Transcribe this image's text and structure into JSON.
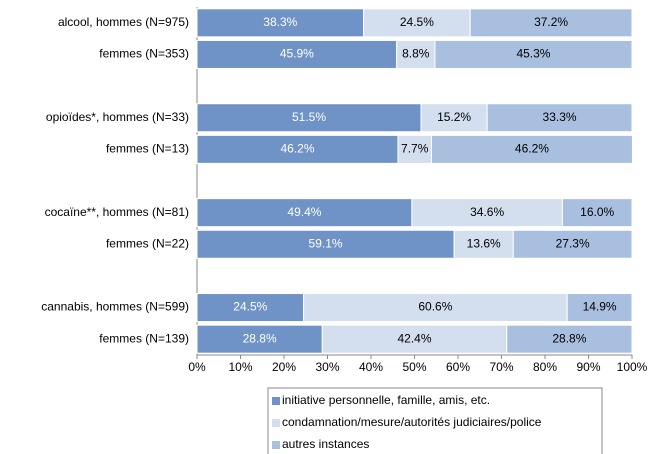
{
  "chart_data": {
    "type": "stacked-barh",
    "categories": [
      "alcool, hommes (N=975)",
      "femmes (N=353)",
      null,
      "opioïdes*, hommes (N=33)",
      "femmes (N=13)",
      null,
      "cocaïne**, hommes (N=81)",
      "femmes (N=22)",
      null,
      "cannabis, hommes (N=599)",
      "femmes (N=139)"
    ],
    "series": [
      {
        "name": "initiative personnelle, famille, amis, etc.",
        "color": "#6f93c6",
        "label_color": "#ffffff",
        "values": [
          38.3,
          45.9,
          null,
          51.5,
          46.2,
          null,
          49.4,
          59.1,
          null,
          24.5,
          28.8
        ],
        "value_labels": [
          "38.3%",
          "45.9%",
          null,
          "51.5%",
          "46.2%",
          null,
          "49.4%",
          "59.1%",
          null,
          "24.5%",
          "28.8%"
        ]
      },
      {
        "name": "condamnation/mesure/autorités judiciaires/police",
        "color": "#d3deef",
        "label_color": "#000000",
        "values": [
          24.5,
          8.8,
          null,
          15.2,
          7.7,
          null,
          34.6,
          13.6,
          null,
          60.6,
          42.4
        ],
        "value_labels": [
          "24.5%",
          "8.8%",
          null,
          "15.2%",
          "7.7%",
          null,
          "34.6%",
          "13.6%",
          null,
          "60.6%",
          "42.4%"
        ]
      },
      {
        "name": "autres instances",
        "color": "#a9bfdf",
        "label_color": "#000000",
        "values": [
          37.2,
          45.3,
          null,
          33.3,
          46.2,
          null,
          16.0,
          27.3,
          null,
          14.9,
          28.8
        ],
        "value_labels": [
          "37.2%",
          "45.3%",
          null,
          "33.3%",
          "46.2%",
          null,
          "16.0%",
          "27.3%",
          null,
          "14.9%",
          "28.8%"
        ]
      }
    ],
    "xlim": [
      0,
      100
    ],
    "xticks": [
      {
        "value": 0,
        "label": "0%"
      },
      {
        "value": 10,
        "label": "10%"
      },
      {
        "value": 20,
        "label": "20%"
      },
      {
        "value": 30,
        "label": "30%"
      },
      {
        "value": 40,
        "label": "40%"
      },
      {
        "value": 50,
        "label": "50%"
      },
      {
        "value": 60,
        "label": "60%"
      },
      {
        "value": 70,
        "label": "70%"
      },
      {
        "value": 80,
        "label": "80%"
      },
      {
        "value": 90,
        "label": "90%"
      },
      {
        "value": 100,
        "label": "100%"
      }
    ]
  }
}
